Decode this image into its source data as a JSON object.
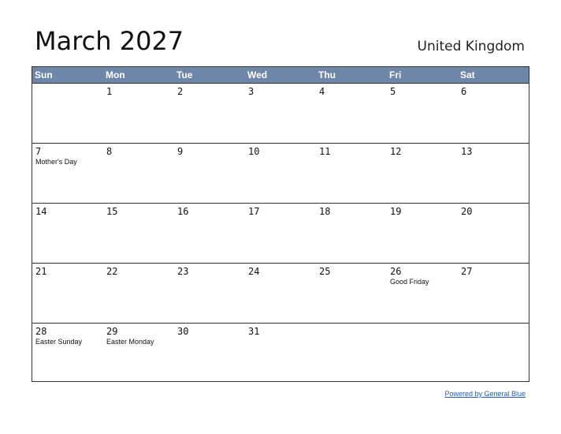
{
  "header": {
    "title": "March 2027",
    "country": "United Kingdom"
  },
  "colors": {
    "header_bg": "#6e86a8",
    "header_text": "#ffffff",
    "border": "#333333",
    "link": "#1f5fbf"
  },
  "days_of_week": [
    "Sun",
    "Mon",
    "Tue",
    "Wed",
    "Thu",
    "Fri",
    "Sat"
  ],
  "weeks": [
    [
      {
        "day": "",
        "holiday": ""
      },
      {
        "day": "1",
        "holiday": ""
      },
      {
        "day": "2",
        "holiday": ""
      },
      {
        "day": "3",
        "holiday": ""
      },
      {
        "day": "4",
        "holiday": ""
      },
      {
        "day": "5",
        "holiday": ""
      },
      {
        "day": "6",
        "holiday": ""
      }
    ],
    [
      {
        "day": "7",
        "holiday": "Mother's Day"
      },
      {
        "day": "8",
        "holiday": ""
      },
      {
        "day": "9",
        "holiday": ""
      },
      {
        "day": "10",
        "holiday": ""
      },
      {
        "day": "11",
        "holiday": ""
      },
      {
        "day": "12",
        "holiday": ""
      },
      {
        "day": "13",
        "holiday": ""
      }
    ],
    [
      {
        "day": "14",
        "holiday": ""
      },
      {
        "day": "15",
        "holiday": ""
      },
      {
        "day": "16",
        "holiday": ""
      },
      {
        "day": "17",
        "holiday": ""
      },
      {
        "day": "18",
        "holiday": ""
      },
      {
        "day": "19",
        "holiday": ""
      },
      {
        "day": "20",
        "holiday": ""
      }
    ],
    [
      {
        "day": "21",
        "holiday": ""
      },
      {
        "day": "22",
        "holiday": ""
      },
      {
        "day": "23",
        "holiday": ""
      },
      {
        "day": "24",
        "holiday": ""
      },
      {
        "day": "25",
        "holiday": ""
      },
      {
        "day": "26",
        "holiday": "Good Friday"
      },
      {
        "day": "27",
        "holiday": ""
      }
    ],
    [
      {
        "day": "28",
        "holiday": "Easter Sunday"
      },
      {
        "day": "29",
        "holiday": "Easter Monday"
      },
      {
        "day": "30",
        "holiday": ""
      },
      {
        "day": "31",
        "holiday": ""
      },
      {
        "day": "",
        "holiday": ""
      },
      {
        "day": "",
        "holiday": ""
      },
      {
        "day": "",
        "holiday": ""
      }
    ]
  ],
  "footer": {
    "link_text": "Powered by General Blue"
  }
}
